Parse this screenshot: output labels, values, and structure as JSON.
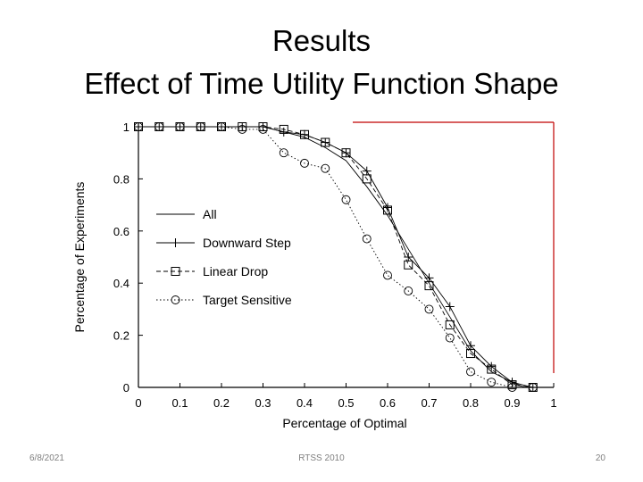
{
  "slide": {
    "title_line1": "Results",
    "title_line2": "Effect of Time Utility Function Shape",
    "footer_date": "6/8/2021",
    "footer_center": "RTSS 2010",
    "footer_page": "20"
  },
  "chart_data": {
    "type": "line",
    "title": "",
    "xlabel": "Percentage of Optimal",
    "ylabel": "Percentage of Experiments",
    "xlim": [
      0,
      1
    ],
    "ylim": [
      0,
      1
    ],
    "xticks": [
      "0",
      "0.1",
      "0.2",
      "0.3",
      "0.4",
      "0.5",
      "0.6",
      "0.7",
      "0.8",
      "0.9",
      "1"
    ],
    "yticks": [
      "0",
      "0.2",
      "0.4",
      "0.6",
      "0.8",
      "1"
    ],
    "grid": false,
    "legend_position": "center-left",
    "accent_color": "#c00000",
    "series": [
      {
        "name": "All",
        "marker": "none",
        "dash": "solid",
        "points": [
          [
            0,
            1
          ],
          [
            0.3,
            1
          ],
          [
            0.35,
            0.98
          ],
          [
            0.4,
            0.96
          ],
          [
            0.45,
            0.92
          ],
          [
            0.5,
            0.87
          ],
          [
            0.55,
            0.77
          ],
          [
            0.6,
            0.66
          ],
          [
            0.65,
            0.53
          ],
          [
            0.7,
            0.4
          ],
          [
            0.75,
            0.27
          ],
          [
            0.8,
            0.14
          ],
          [
            0.85,
            0.06
          ],
          [
            0.9,
            0.02
          ],
          [
            0.93,
            0
          ]
        ]
      },
      {
        "name": "Downward Step",
        "marker": "plus",
        "dash": "solid",
        "points": [
          [
            0,
            1
          ],
          [
            0.05,
            1
          ],
          [
            0.1,
            1
          ],
          [
            0.15,
            1
          ],
          [
            0.2,
            1
          ],
          [
            0.25,
            1
          ],
          [
            0.3,
            1
          ],
          [
            0.35,
            0.98
          ],
          [
            0.4,
            0.97
          ],
          [
            0.45,
            0.94
          ],
          [
            0.5,
            0.9
          ],
          [
            0.55,
            0.83
          ],
          [
            0.6,
            0.69
          ],
          [
            0.65,
            0.5
          ],
          [
            0.7,
            0.42
          ],
          [
            0.75,
            0.31
          ],
          [
            0.8,
            0.16
          ],
          [
            0.85,
            0.08
          ],
          [
            0.9,
            0.02
          ],
          [
            0.95,
            0
          ]
        ]
      },
      {
        "name": "Linear Drop",
        "marker": "square",
        "dash": "dashed",
        "points": [
          [
            0,
            1
          ],
          [
            0.05,
            1
          ],
          [
            0.1,
            1
          ],
          [
            0.15,
            1
          ],
          [
            0.2,
            1
          ],
          [
            0.25,
            1
          ],
          [
            0.3,
            1
          ],
          [
            0.35,
            0.99
          ],
          [
            0.4,
            0.97
          ],
          [
            0.45,
            0.94
          ],
          [
            0.5,
            0.9
          ],
          [
            0.55,
            0.8
          ],
          [
            0.6,
            0.68
          ],
          [
            0.65,
            0.47
          ],
          [
            0.7,
            0.39
          ],
          [
            0.75,
            0.24
          ],
          [
            0.8,
            0.13
          ],
          [
            0.85,
            0.07
          ],
          [
            0.9,
            0.01
          ],
          [
            0.95,
            0
          ]
        ]
      },
      {
        "name": "Target Sensitive",
        "marker": "circle",
        "dash": "dotted",
        "points": [
          [
            0,
            1
          ],
          [
            0.05,
            1
          ],
          [
            0.1,
            1
          ],
          [
            0.15,
            1
          ],
          [
            0.2,
            1
          ],
          [
            0.25,
            0.99
          ],
          [
            0.3,
            0.99
          ],
          [
            0.35,
            0.9
          ],
          [
            0.4,
            0.86
          ],
          [
            0.45,
            0.84
          ],
          [
            0.5,
            0.72
          ],
          [
            0.55,
            0.57
          ],
          [
            0.6,
            0.43
          ],
          [
            0.65,
            0.37
          ],
          [
            0.7,
            0.3
          ],
          [
            0.75,
            0.19
          ],
          [
            0.8,
            0.06
          ],
          [
            0.85,
            0.02
          ],
          [
            0.9,
            0
          ],
          [
            0.95,
            0
          ]
        ]
      }
    ]
  }
}
